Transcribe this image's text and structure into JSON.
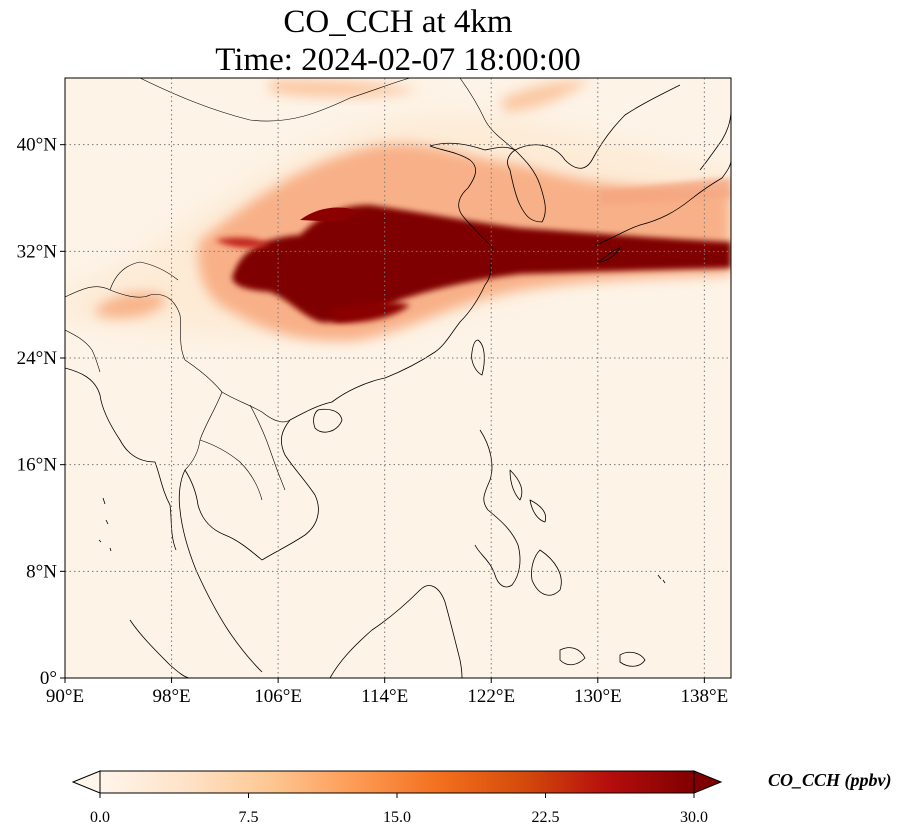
{
  "title": {
    "line1": "CO_CCH at 4km",
    "line2": "Time: 2024-02-07 18:00:00"
  },
  "map": {
    "lon_range": [
      90,
      140
    ],
    "lat_range": [
      0,
      45
    ],
    "lon_ticks": [
      {
        "value": 90,
        "label": "90°E"
      },
      {
        "value": 98,
        "label": "98°E"
      },
      {
        "value": 106,
        "label": "106°E"
      },
      {
        "value": 114,
        "label": "114°E"
      },
      {
        "value": 122,
        "label": "122°E"
      },
      {
        "value": 130,
        "label": "130°E"
      },
      {
        "value": 138,
        "label": "138°E"
      }
    ],
    "lat_ticks": [
      {
        "value": 0,
        "label": "0°"
      },
      {
        "value": 8,
        "label": "8°N"
      },
      {
        "value": 16,
        "label": "16°N"
      },
      {
        "value": 24,
        "label": "24°N"
      },
      {
        "value": 32,
        "label": "32°N"
      },
      {
        "value": 40,
        "label": "40°N"
      }
    ],
    "colors": {
      "background": "#fdf3e6",
      "coast": "#000000",
      "grid": "#7a7a7a"
    }
  },
  "colorbar": {
    "label": "CO_CCH (ppbv)",
    "range": [
      0,
      30
    ],
    "ticks": [
      {
        "value": 0,
        "label": "0.0"
      },
      {
        "value": 7.5,
        "label": "7.5"
      },
      {
        "value": 15,
        "label": "15.0"
      },
      {
        "value": 22.5,
        "label": "22.5"
      },
      {
        "value": 30,
        "label": "30.0"
      }
    ],
    "stops": [
      "#fff5eb",
      "#fee3c8",
      "#fdc793",
      "#fd9b55",
      "#f2701d",
      "#d44a0b",
      "#b50d0d",
      "#800000"
    ]
  }
}
